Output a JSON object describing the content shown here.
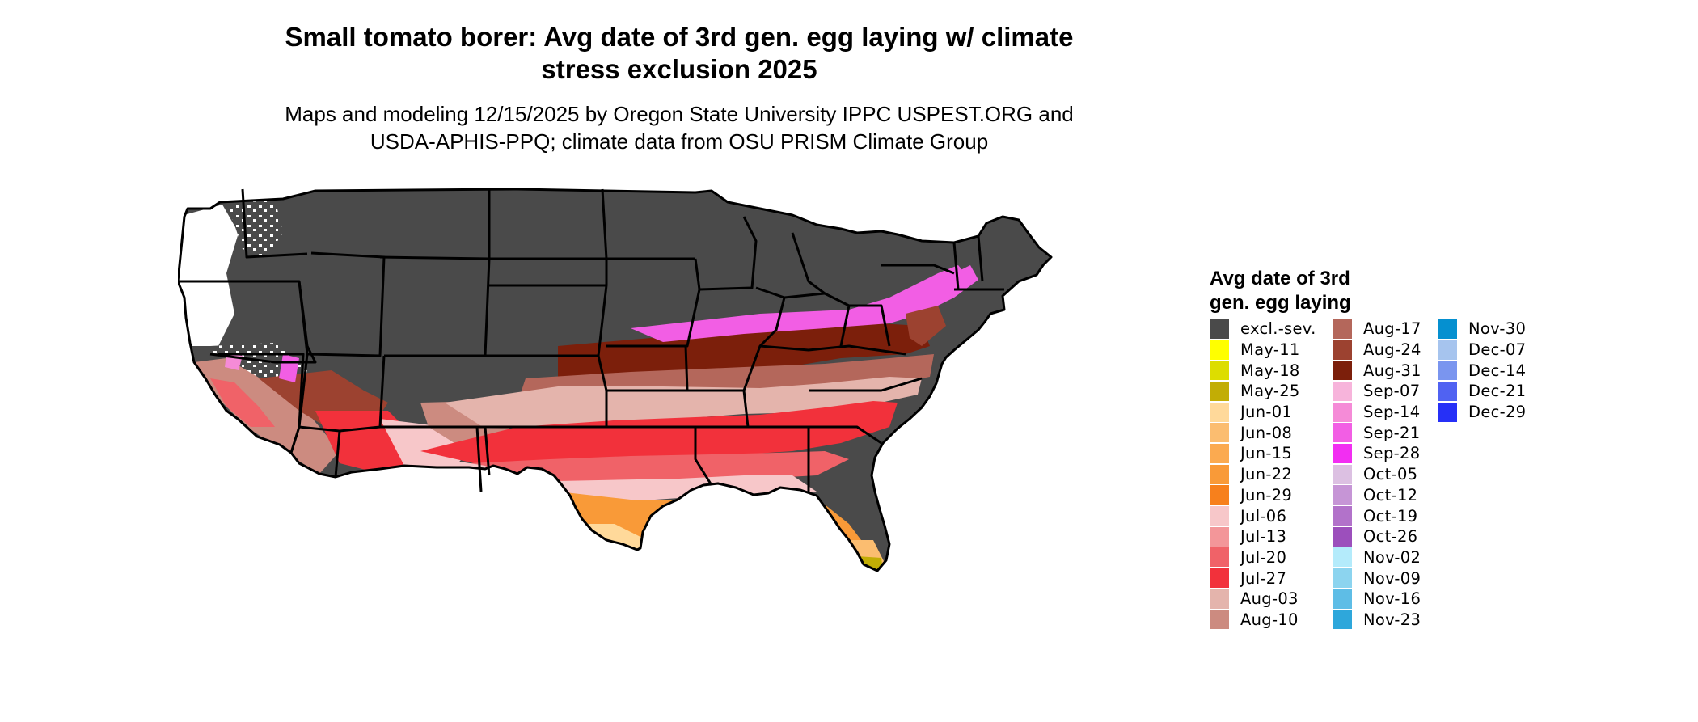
{
  "title": {
    "line1": "Small tomato borer: Avg date of 3rd gen. egg laying w/ climate",
    "line2": "stress exclusion 2025"
  },
  "subtitle": {
    "line1": "Maps and modeling 12/15/2025 by Oregon State University IPPC USPEST.ORG and",
    "line2": "USDA-APHIS-PPQ; climate data from OSU PRISM Climate Group"
  },
  "legend": {
    "title_line1": "Avg date of 3rd",
    "title_line2": "gen. egg laying",
    "columns": [
      [
        {
          "label": "excl.-sev.",
          "color": "#4a4a4a"
        },
        {
          "label": "May-11",
          "color": "#ffff00"
        },
        {
          "label": "May-18",
          "color": "#dddd00"
        },
        {
          "label": "May-25",
          "color": "#c2ad05"
        },
        {
          "label": "Jun-01",
          "color": "#ffd99a"
        },
        {
          "label": "Jun-08",
          "color": "#fbbd70"
        },
        {
          "label": "Jun-15",
          "color": "#fbaa50"
        },
        {
          "label": "Jun-22",
          "color": "#f99a38"
        },
        {
          "label": "Jun-29",
          "color": "#f7801c"
        },
        {
          "label": "Jul-06",
          "color": "#f7c7c9"
        },
        {
          "label": "Jul-13",
          "color": "#f39699"
        },
        {
          "label": "Jul-20",
          "color": "#f06268"
        },
        {
          "label": "Jul-27",
          "color": "#f2313b"
        },
        {
          "label": "Aug-03",
          "color": "#e4b4ac"
        },
        {
          "label": "Aug-10",
          "color": "#cc8b80"
        }
      ],
      [
        {
          "label": "Aug-17",
          "color": "#b4675b"
        },
        {
          "label": "Aug-24",
          "color": "#9c4230"
        },
        {
          "label": "Aug-31",
          "color": "#7c1f0b"
        },
        {
          "label": "Sep-07",
          "color": "#f7b4db"
        },
        {
          "label": "Sep-14",
          "color": "#f58bd7"
        },
        {
          "label": "Sep-21",
          "color": "#f25ee4"
        },
        {
          "label": "Sep-28",
          "color": "#f22ef2"
        },
        {
          "label": "Oct-05",
          "color": "#dcc0e2"
        },
        {
          "label": "Oct-12",
          "color": "#c695d6"
        },
        {
          "label": "Oct-19",
          "color": "#b272ca"
        },
        {
          "label": "Oct-26",
          "color": "#9c4fbc"
        },
        {
          "label": "Nov-02",
          "color": "#b4ebfb"
        },
        {
          "label": "Nov-09",
          "color": "#8cd4ef"
        },
        {
          "label": "Nov-16",
          "color": "#5ebde6"
        },
        {
          "label": "Nov-23",
          "color": "#2ea7db"
        }
      ],
      [
        {
          "label": "Nov-30",
          "color": "#0590d0"
        },
        {
          "label": "Dec-07",
          "color": "#a6c4ee"
        },
        {
          "label": "Dec-14",
          "color": "#7a95ef"
        },
        {
          "label": "Dec-21",
          "color": "#5062f2"
        },
        {
          "label": "Dec-29",
          "color": "#2630f7"
        }
      ]
    ]
  }
}
